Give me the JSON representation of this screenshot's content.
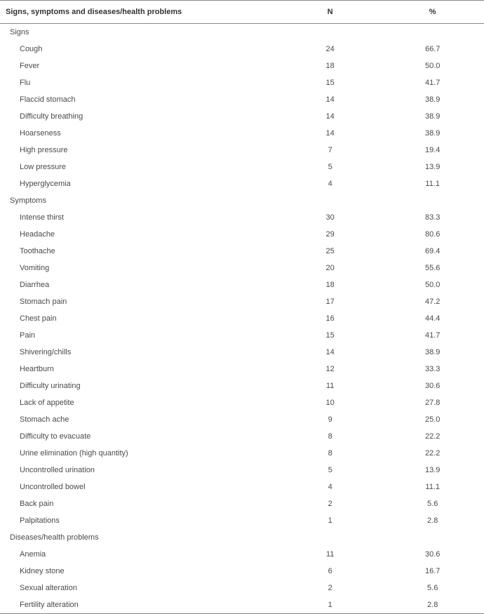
{
  "table": {
    "headers": {
      "label": "Signs, symptoms and diseases/health problems",
      "n": "N",
      "pct": "%"
    },
    "sections": [
      {
        "title": "Signs",
        "rows": [
          {
            "label": "Cough",
            "n": "24",
            "pct": "66.7"
          },
          {
            "label": "Fever",
            "n": "18",
            "pct": "50.0"
          },
          {
            "label": "Flu",
            "n": "15",
            "pct": "41.7"
          },
          {
            "label": "Flaccid stomach",
            "n": "14",
            "pct": "38.9"
          },
          {
            "label": "Difficulty breathing",
            "n": "14",
            "pct": "38.9"
          },
          {
            "label": "Hoarseness",
            "n": "14",
            "pct": "38.9"
          },
          {
            "label": "High pressure",
            "n": "7",
            "pct": "19.4"
          },
          {
            "label": "Low pressure",
            "n": "5",
            "pct": "13.9"
          },
          {
            "label": "Hyperglycemia",
            "n": "4",
            "pct": "11.1"
          }
        ]
      },
      {
        "title": "Symptoms",
        "rows": [
          {
            "label": "Intense thirst",
            "n": "30",
            "pct": "83.3"
          },
          {
            "label": "Headache",
            "n": "29",
            "pct": "80.6"
          },
          {
            "label": "Toothache",
            "n": "25",
            "pct": "69.4"
          },
          {
            "label": "Vomiting",
            "n": "20",
            "pct": "55.6"
          },
          {
            "label": "Diarrhea",
            "n": "18",
            "pct": "50.0"
          },
          {
            "label": "Stomach pain",
            "n": "17",
            "pct": "47.2"
          },
          {
            "label": "Chest pain",
            "n": "16",
            "pct": "44.4"
          },
          {
            "label": "Pain",
            "n": "15",
            "pct": "41.7"
          },
          {
            "label": "Shivering/chills",
            "n": "14",
            "pct": "38.9"
          },
          {
            "label": "Heartburn",
            "n": "12",
            "pct": "33.3"
          },
          {
            "label": "Difficulty urinating",
            "n": "11",
            "pct": "30.6"
          },
          {
            "label": "Lack of appetite",
            "n": "10",
            "pct": "27.8"
          },
          {
            "label": "Stomach ache",
            "n": "9",
            "pct": "25.0"
          },
          {
            "label": "Difficulty to evacuate",
            "n": "8",
            "pct": "22.2"
          },
          {
            "label": "Urine elimination (high quantity)",
            "n": "8",
            "pct": "22.2"
          },
          {
            "label": "Uncontrolled urination",
            "n": "5",
            "pct": "13.9"
          },
          {
            "label": "Uncontrolled bowel",
            "n": "4",
            "pct": "11.1"
          },
          {
            "label": "Back pain",
            "n": "2",
            "pct": "5.6"
          },
          {
            "label": "Palpitations",
            "n": "1",
            "pct": "2.8"
          }
        ]
      },
      {
        "title": "Diseases/health problems",
        "rows": [
          {
            "label": "Anemia",
            "n": "11",
            "pct": "30.6"
          },
          {
            "label": "Kidney stone",
            "n": "6",
            "pct": "16.7"
          },
          {
            "label": "Sexual alteration",
            "n": "2",
            "pct": "5.6"
          },
          {
            "label": "Fertility alteration",
            "n": "1",
            "pct": "2.8"
          }
        ]
      }
    ]
  }
}
